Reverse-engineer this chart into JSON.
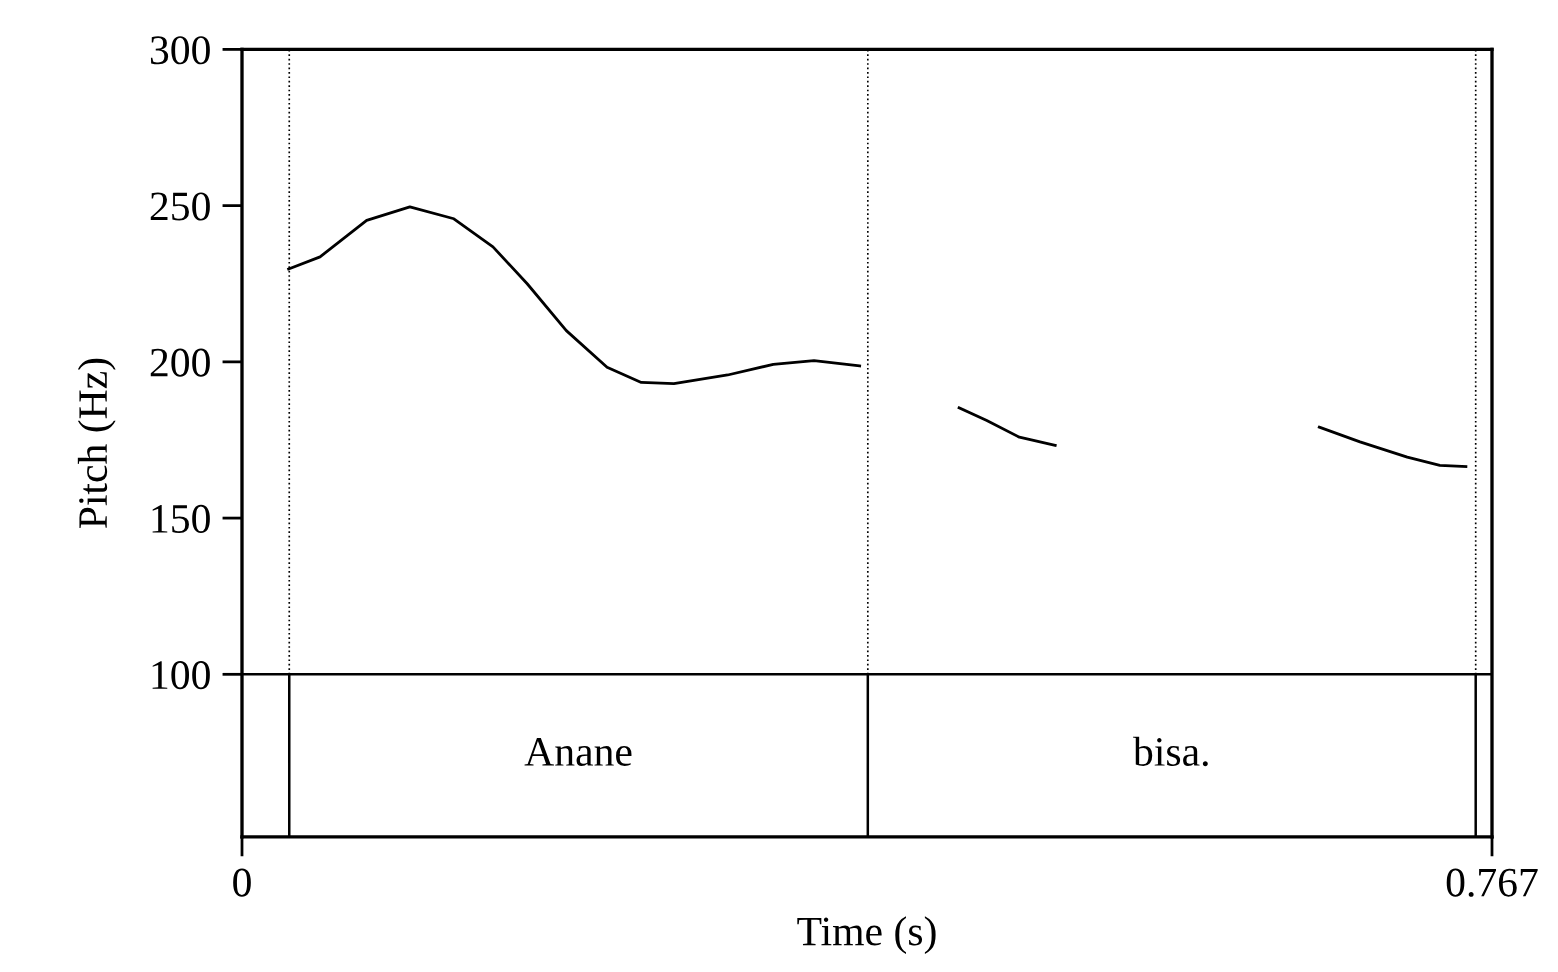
{
  "chart_data": {
    "type": "line",
    "xlabel": "Time (s)",
    "ylabel": "Pitch (Hz)",
    "xlim": [
      0,
      0.767
    ],
    "xticks": [
      0,
      0.767
    ],
    "ylim": [
      48,
      300
    ],
    "yticks": [
      100,
      150,
      200,
      250,
      300
    ],
    "grid": false,
    "legend": false,
    "marker": "none",
    "line_style": "solid",
    "series": [
      {
        "color": "#000000",
        "x": [
          0.0286,
          0.0479,
          0.0765,
          0.103,
          0.13,
          0.154,
          0.175,
          0.199,
          0.224,
          0.245,
          0.265,
          0.298,
          0.326,
          0.351,
          0.379,
          0.41,
          0.44,
          0.457,
          0.477,
          0.499,
          0.58,
          0.661,
          0.686,
          0.715,
          0.735,
          0.751
        ],
        "values": [
          229.7,
          233.6,
          245.3,
          249.6,
          245.8,
          236.8,
          225,
          210,
          198.3,
          193.4,
          193,
          195.8,
          199.2,
          200.4,
          198.7,
          null,
          185.3,
          181.2,
          175.9,
          173.3,
          null,
          179.1,
          174.4,
          169.5,
          166.9,
          166.5
        ]
      }
    ],
    "ref_lines": [
      {
        "axis": "y",
        "value": 100,
        "color": "#000000",
        "line_style": "solid"
      },
      {
        "axis": "x",
        "value": 0.029,
        "color": "#000000",
        "line_style": "dotted"
      },
      {
        "axis": "x",
        "value": 0.384,
        "color": "#000000",
        "line_style": "dotted"
      },
      {
        "axis": "x",
        "value": 0.757,
        "color": "#000000",
        "line_style": "dotted"
      },
      {
        "axis": "x",
        "value": 0.029,
        "color": "#000000",
        "line_style": "solid"
      },
      {
        "axis": "x",
        "value": 0.384,
        "color": "#000000",
        "line_style": "solid"
      },
      {
        "axis": "x",
        "value": 0.757,
        "color": "#000000",
        "line_style": "solid"
      }
    ],
    "annotations": [
      "Anane",
      "bisa."
    ]
  }
}
